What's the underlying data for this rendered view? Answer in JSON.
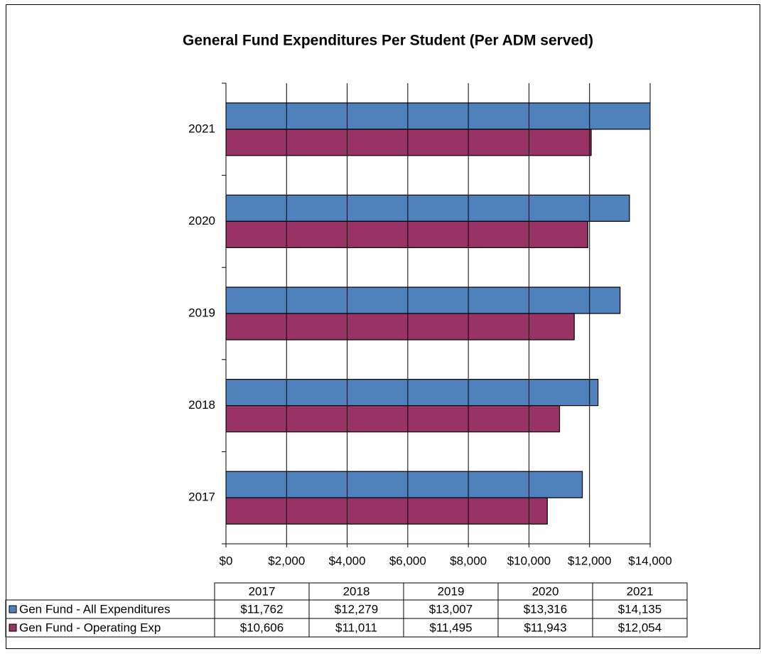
{
  "chart_data": {
    "type": "hbar",
    "title": "General Fund Expenditures Per Student (Per ADM served)",
    "categories": [
      "2017",
      "2018",
      "2019",
      "2020",
      "2021"
    ],
    "series": [
      {
        "name": "Gen Fund - All Expenditures",
        "color": "#4f81bd",
        "values": [
          11762,
          12279,
          13007,
          13316,
          14135
        ],
        "value_labels": [
          "$11,762",
          "$12,279",
          "$13,007",
          "$13,316",
          "$14,135"
        ]
      },
      {
        "name": "Gen Fund - Operating Exp",
        "color": "#993366",
        "values": [
          10606,
          11011,
          11495,
          11943,
          12054
        ],
        "value_labels": [
          "$10,606",
          "$11,011",
          "$11,495",
          "$11,943",
          "$12,054"
        ]
      }
    ],
    "xlim": [
      0,
      14000
    ],
    "xticks": [
      {
        "value": 0,
        "label": "$0"
      },
      {
        "value": 2000,
        "label": "$2,000"
      },
      {
        "value": 4000,
        "label": "$4,000"
      },
      {
        "value": 6000,
        "label": "$6,000"
      },
      {
        "value": 8000,
        "label": "$8,000"
      },
      {
        "value": 10000,
        "label": "$10,000"
      },
      {
        "value": 12000,
        "label": "$12,000"
      },
      {
        "value": 14000,
        "label": "$14,000"
      }
    ],
    "grid": true
  }
}
